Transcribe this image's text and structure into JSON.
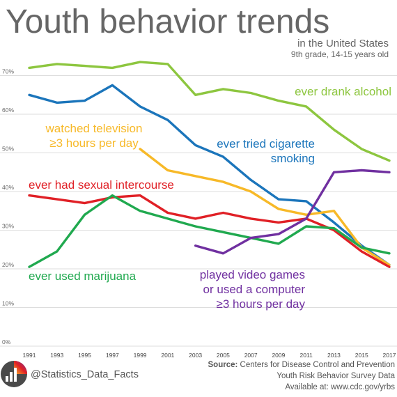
{
  "chart_data": {
    "type": "line",
    "title": "Youth behavior trends",
    "subtitle_lines": [
      "in the United States",
      "9th grade, 14-15 years old"
    ],
    "x": [
      1991,
      1993,
      1995,
      1997,
      1999,
      2001,
      2003,
      2005,
      2007,
      2009,
      2011,
      2013,
      2015,
      2017
    ],
    "xlim": [
      1991,
      2017
    ],
    "ylim": [
      0,
      75
    ],
    "y_ticks": [
      "0%",
      "10%",
      "20%",
      "30%",
      "40%",
      "50%",
      "60%",
      "70%"
    ],
    "grid": true,
    "series": [
      {
        "name": "ever drank alcohol",
        "label_lines": [
          "ever drank alcohol"
        ],
        "color": "#8dc63f",
        "values": [
          72,
          73,
          72.5,
          72,
          73.5,
          73,
          65,
          66.5,
          65.5,
          63.5,
          62,
          56,
          51,
          48
        ]
      },
      {
        "name": "ever tried cigarette smoking",
        "label_lines": [
          "ever tried cigarette",
          "smoking"
        ],
        "color": "#1b75bb",
        "values": [
          65,
          63,
          63.5,
          67.5,
          62,
          58.5,
          52,
          49,
          43,
          38,
          37.5,
          32,
          26,
          21
        ]
      },
      {
        "name": "watched television ≥3 hours per day",
        "label_lines": [
          "watched television",
          "≥3 hours per day"
        ],
        "color": "#f7b928",
        "values": [
          null,
          null,
          null,
          null,
          51,
          45.5,
          44,
          42.5,
          40,
          35.5,
          34,
          35,
          25.5,
          21
        ]
      },
      {
        "name": "ever had sexual intercourse",
        "label_lines": [
          "ever had sexual intercourse"
        ],
        "color": "#e02026",
        "values": [
          39,
          38,
          37,
          38.5,
          39,
          34.5,
          33,
          34.5,
          33,
          32,
          33,
          30,
          24.5,
          20.5
        ]
      },
      {
        "name": "ever used marijuana",
        "label_lines": [
          "ever used marijuana"
        ],
        "color": "#20a94f",
        "values": [
          20.5,
          24.5,
          34,
          39,
          35,
          33,
          31,
          29.5,
          28,
          26.5,
          31,
          30.5,
          25.5,
          24
        ]
      },
      {
        "name": "played video games or used a computer ≥3 hours per day",
        "label_lines": [
          "played video games",
          "or used a computer",
          "≥3 hours per day"
        ],
        "color": "#7030a0",
        "values": [
          null,
          null,
          null,
          null,
          null,
          null,
          26,
          24,
          28,
          29,
          33,
          45,
          45.5,
          45
        ]
      }
    ]
  },
  "footer": {
    "handle": "@Statistics_Data_Facts",
    "source_label": "Source:",
    "source_text": "Centers for Disease Control and Prevention",
    "source_line2": "Youth Risk Behavior Survey Data",
    "source_line3": "Available at: www.cdc.gov/yrbs"
  }
}
